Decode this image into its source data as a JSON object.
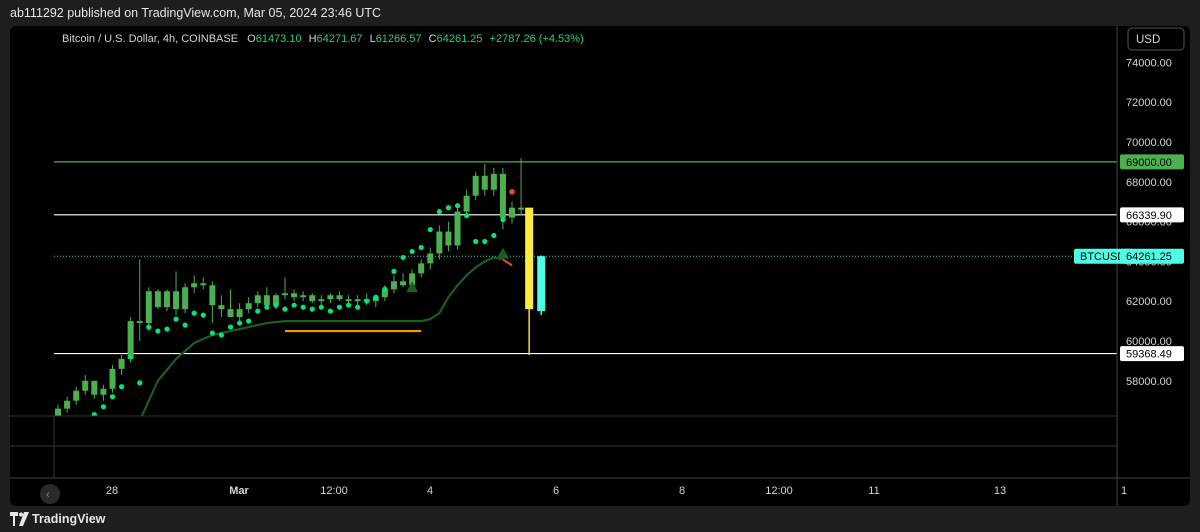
{
  "header": {
    "published": "ab111292 published on TradingView.com, Mar 05, 2024 23:46 UTC"
  },
  "legend": {
    "symbol": "Bitcoin / U.S. Dollar, 4h, COINBASE",
    "o_label": "O",
    "o": "61473.10",
    "h_label": "H",
    "h": "64271.67",
    "l_label": "L",
    "l": "61266.57",
    "c_label": "C",
    "c": "64261.25",
    "change": "+2787.26 (+4.53%)"
  },
  "currency": "USD",
  "footer": {
    "brand": "TradingView"
  },
  "colors": {
    "up": "#4caf50",
    "yellow": "#ffeb3b",
    "cyan": "#4dfde6",
    "green_line": "#1b5e20",
    "orange": "#ff9800",
    "dot": "#00e676",
    "red_dot": "#f44336",
    "level_green": "#4caf50"
  },
  "chart_data": {
    "type": "candlestick",
    "x_ticks": [
      "28",
      "Mar",
      "12:00",
      "4",
      "6",
      "8",
      "12:00",
      "11",
      "13",
      "1"
    ],
    "y_ticks": [
      58000,
      60000,
      62000,
      64000,
      66000,
      68000,
      70000,
      72000,
      74000
    ],
    "y_tick_labels": [
      "58000.00",
      "60000.00",
      "62000.00",
      "64000.00",
      "66000.00",
      "68000.00",
      "70000.00",
      "72000.00",
      "74000.00"
    ],
    "ylim": [
      53500,
      75500
    ],
    "levels": [
      {
        "label": "69000.00",
        "value": 69000,
        "color": "green"
      },
      {
        "label": "66339.90",
        "value": 66339.9,
        "color": "white"
      },
      {
        "label": "59368.49",
        "value": 59368.49,
        "color": "white"
      }
    ],
    "last_price": {
      "symbol": "BTCUSD",
      "label": "64261.25",
      "value": 64261.25
    },
    "candles": [
      [
        56200,
        56800,
        56000,
        56600
      ],
      [
        56600,
        57200,
        56400,
        57000
      ],
      [
        57000,
        57700,
        56800,
        57500
      ],
      [
        57500,
        58300,
        57300,
        58000
      ],
      [
        58000,
        58000,
        57100,
        57300
      ],
      [
        57300,
        57800,
        57000,
        57600
      ],
      [
        57600,
        58800,
        57400,
        58600
      ],
      [
        58600,
        59300,
        58300,
        59100
      ],
      [
        59100,
        61200,
        58900,
        61000
      ],
      [
        61000,
        64100,
        60000,
        60900
      ],
      [
        60900,
        62700,
        60500,
        62500
      ],
      [
        62500,
        62600,
        61600,
        61700
      ],
      [
        61700,
        62600,
        61500,
        62500
      ],
      [
        62500,
        63500,
        61300,
        61600
      ],
      [
        61600,
        62900,
        61400,
        62700
      ],
      [
        62700,
        63300,
        62400,
        62900
      ],
      [
        62900,
        63200,
        62600,
        62800
      ],
      [
        62800,
        63000,
        60900,
        61800
      ],
      [
        61800,
        62300,
        61200,
        61600
      ],
      [
        61600,
        62600,
        61400,
        61200
      ],
      [
        61200,
        61900,
        61000,
        61600
      ],
      [
        61600,
        62200,
        61400,
        61900
      ],
      [
        61900,
        62500,
        61700,
        62300
      ],
      [
        62300,
        62700,
        61600,
        61800
      ],
      [
        61800,
        62400,
        61600,
        62300
      ],
      [
        62300,
        63200,
        62100,
        62400
      ],
      [
        62400,
        62600,
        62000,
        62200
      ],
      [
        62200,
        62500,
        62000,
        62300
      ],
      [
        62300,
        62400,
        61900,
        62000
      ],
      [
        62000,
        62300,
        61800,
        62100
      ],
      [
        62100,
        62400,
        61900,
        62300
      ],
      [
        62300,
        62500,
        62000,
        62100
      ],
      [
        62100,
        62300,
        61800,
        62000
      ],
      [
        62000,
        62300,
        61700,
        62100
      ],
      [
        62100,
        62400,
        61800,
        62000
      ],
      [
        62000,
        62300,
        61700,
        62200
      ],
      [
        62200,
        62800,
        62000,
        62600
      ],
      [
        62600,
        63300,
        62400,
        63000
      ],
      [
        63000,
        63400,
        62700,
        62800
      ],
      [
        62800,
        63600,
        62600,
        63400
      ],
      [
        63400,
        64100,
        63200,
        63900
      ],
      [
        63900,
        64700,
        63600,
        64400
      ],
      [
        64400,
        65800,
        64100,
        65500
      ],
      [
        65500,
        66000,
        64500,
        64800
      ],
      [
        64800,
        66700,
        64600,
        66500
      ],
      [
        66500,
        67600,
        66200,
        67300
      ],
      [
        67300,
        68500,
        67100,
        68300
      ],
      [
        68300,
        68900,
        67300,
        67600
      ],
      [
        67600,
        68700,
        67300,
        68400
      ],
      [
        68400,
        68700,
        65600,
        66200
      ],
      [
        66200,
        67000,
        65900,
        66700
      ],
      [
        66700,
        69200,
        66300,
        66600
      ]
    ],
    "yellow_candle": [
      66700,
      66700,
      59300,
      61600
    ],
    "cyan_candle": [
      61500,
      64300,
      61300,
      64261.25
    ],
    "dots": [
      [
        4,
        56300
      ],
      [
        5,
        56700
      ],
      [
        6,
        57200
      ],
      [
        7,
        57700
      ],
      [
        8,
        59200
      ],
      [
        9,
        57900
      ],
      [
        10,
        60700
      ],
      [
        11,
        60500
      ],
      [
        12,
        60600
      ],
      [
        13,
        61100
      ],
      [
        14,
        60800
      ],
      [
        15,
        61400
      ],
      [
        16,
        61300
      ],
      [
        17,
        60400
      ],
      [
        18,
        60300
      ],
      [
        19,
        60700
      ],
      [
        20,
        60900
      ],
      [
        21,
        61000
      ],
      [
        22,
        61500
      ],
      [
        23,
        61700
      ],
      [
        24,
        61800
      ],
      [
        25,
        61600
      ],
      [
        26,
        61800
      ],
      [
        27,
        61700
      ],
      [
        28,
        61600
      ],
      [
        29,
        61700
      ],
      [
        30,
        61500
      ],
      [
        31,
        61700
      ],
      [
        32,
        61800
      ],
      [
        33,
        61700
      ],
      [
        34,
        62000
      ],
      [
        35,
        62200
      ],
      [
        36,
        62600
      ],
      [
        37,
        63500
      ],
      [
        38,
        64200
      ],
      [
        39,
        64500
      ],
      [
        40,
        64700
      ],
      [
        41,
        65600
      ],
      [
        42,
        66500
      ],
      [
        43,
        66700
      ],
      [
        44,
        66800
      ],
      [
        45,
        66300
      ],
      [
        46,
        65000
      ],
      [
        47,
        65000
      ],
      [
        48,
        65300
      ],
      [
        49,
        66100
      ]
    ],
    "red_dot": [
      50,
      67500
    ],
    "triangles": [
      [
        39,
        62700
      ],
      [
        49,
        64400
      ]
    ],
    "trend_line": [
      [
        9,
        56000
      ],
      [
        11,
        58000
      ],
      [
        13,
        59100
      ],
      [
        15,
        59900
      ],
      [
        17,
        60300
      ],
      [
        19,
        60500
      ],
      [
        21,
        60700
      ],
      [
        23,
        60900
      ],
      [
        25,
        61000
      ],
      [
        30,
        61000
      ],
      [
        35,
        61000
      ],
      [
        40,
        61000
      ],
      [
        41,
        61100
      ],
      [
        42,
        61400
      ],
      [
        43,
        62200
      ],
      [
        44,
        62800
      ],
      [
        45,
        63300
      ],
      [
        46,
        63700
      ],
      [
        47,
        64000
      ],
      [
        48,
        64200
      ],
      [
        49,
        64100
      ]
    ],
    "orange_line": {
      "from": 25,
      "to": 40,
      "value": 60500
    }
  }
}
